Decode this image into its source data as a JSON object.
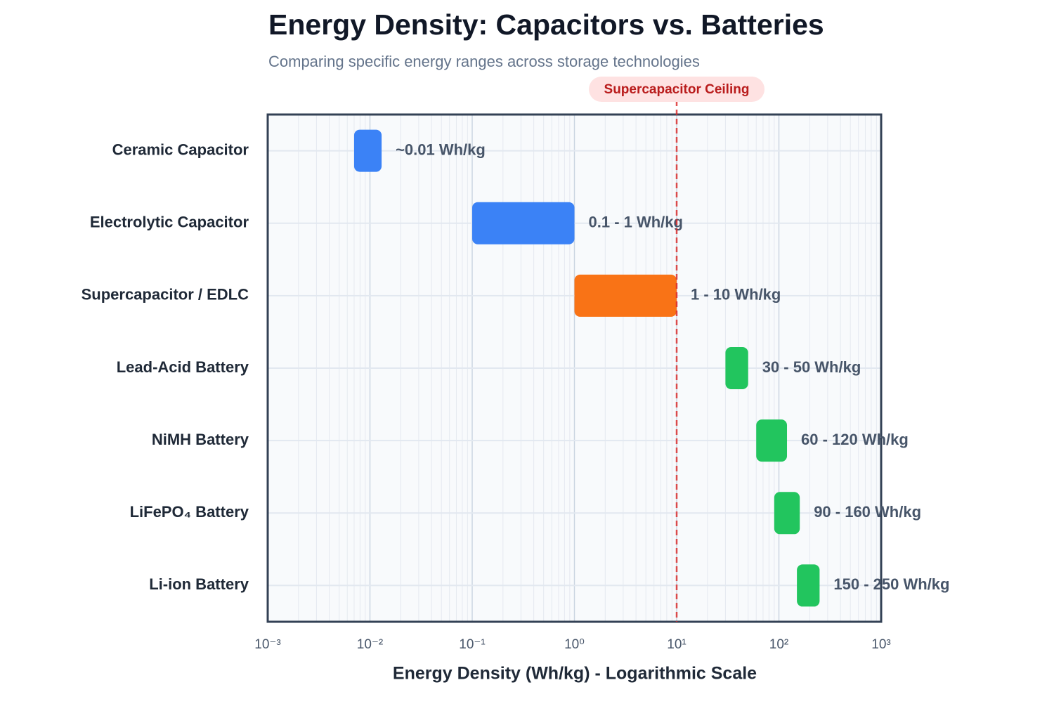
{
  "chart_data": {
    "type": "range-bar",
    "title": "Energy Density: Capacitors vs. Batteries",
    "subtitle": "Comparing specific energy ranges across storage technologies",
    "x_label": "Energy Density (Wh/kg) - Logarithmic Scale",
    "categories": [
      "Ceramic Capacitor",
      "Electrolytic Capacitor",
      "Supercapacitor / EDLC",
      "Lead-Acid Battery",
      "NiMH Battery",
      "LiFePO₄ Battery",
      "Li-ion Battery"
    ],
    "low": [
      0.007,
      0.1,
      1,
      30,
      60,
      90,
      150
    ],
    "high": [
      0.013,
      1,
      10,
      50,
      120,
      160,
      250
    ],
    "value_labels": [
      "~0.01 Wh/kg",
      "0.1 - 1 Wh/kg",
      "1 - 10 Wh/kg",
      "30 - 50 Wh/kg",
      "60 - 120 Wh/kg",
      "90 - 160 Wh/kg",
      "150 - 250 Wh/kg"
    ],
    "colors": [
      "#3b82f6",
      "#3b82f6",
      "#f97316",
      "#22c55e",
      "#22c55e",
      "#22c55e",
      "#22c55e"
    ],
    "x_scale": "log",
    "xlim": [
      0.001,
      1000
    ],
    "xticks": [
      {
        "value": 0.001,
        "label": "10⁻³"
      },
      {
        "value": 0.01,
        "label": "10⁻²"
      },
      {
        "value": 0.1,
        "label": "10⁻¹"
      },
      {
        "value": 1,
        "label": "10⁰"
      },
      {
        "value": 10,
        "label": "10¹"
      },
      {
        "value": 100,
        "label": "10²"
      },
      {
        "value": 1000,
        "label": "10³"
      }
    ],
    "xminorticks": [
      0.002,
      0.003,
      0.004,
      0.005,
      0.006,
      0.007,
      0.008,
      0.009,
      0.02,
      0.03,
      0.04,
      0.05,
      0.06,
      0.07,
      0.08,
      0.09,
      0.2,
      0.3,
      0.4,
      0.5,
      0.6,
      0.7,
      0.8,
      0.9,
      2,
      3,
      4,
      5,
      6,
      7,
      8,
      9,
      20,
      30,
      40,
      50,
      60,
      70,
      80,
      90,
      200,
      300,
      400,
      500,
      600,
      700,
      800,
      900
    ],
    "grid": true,
    "reference_line": {
      "value": 10,
      "label": "Supercapacitor Ceiling",
      "color": "#dc2626"
    }
  }
}
